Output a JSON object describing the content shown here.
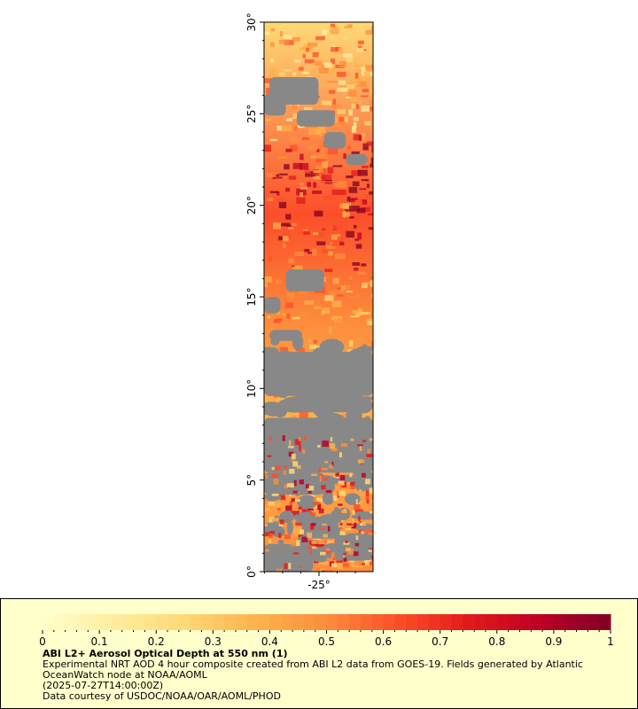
{
  "map": {
    "y_axis": {
      "min": 0,
      "max": 30,
      "ticks": [
        {
          "value": 0,
          "label": "0°"
        },
        {
          "value": 5,
          "label": "5°"
        },
        {
          "value": 10,
          "label": "10°"
        },
        {
          "value": 15,
          "label": "15°"
        },
        {
          "value": 20,
          "label": "20°"
        },
        {
          "value": 25,
          "label": "25°"
        },
        {
          "value": 30,
          "label": "30°"
        }
      ]
    },
    "x_axis": {
      "ticks": [
        {
          "value": -25,
          "label": "-25°"
        }
      ]
    },
    "colors": {
      "missing": "#888888",
      "frame": "#000000"
    }
  },
  "colorbar": {
    "min": 0,
    "max": 1,
    "tick_labels": [
      "0",
      "0.1",
      "0.2",
      "0.3",
      "0.4",
      "0.5",
      "0.6",
      "0.7",
      "0.8",
      "0.9",
      "1"
    ],
    "colormap": [
      "#ffffcc",
      "#ffeda0",
      "#fed976",
      "#feb24c",
      "#fd8d3c",
      "#fc4e2a",
      "#e31a1c",
      "#bd0026",
      "#800026"
    ]
  },
  "legend": {
    "title": "ABI L2+ Aerosol Optical Depth at 550 nm (1)",
    "line1": "Experimental NRT AOD 4 hour composite created from ABI L2 data from GOES-19. Fields generated by Atlantic OceanWatch node at NOAA/AOML",
    "line2": "(2025-07-27T14:00:00Z)",
    "line3": "Data courtesy of USDOC/NOAA/OAR/AOML/PHOD"
  }
}
